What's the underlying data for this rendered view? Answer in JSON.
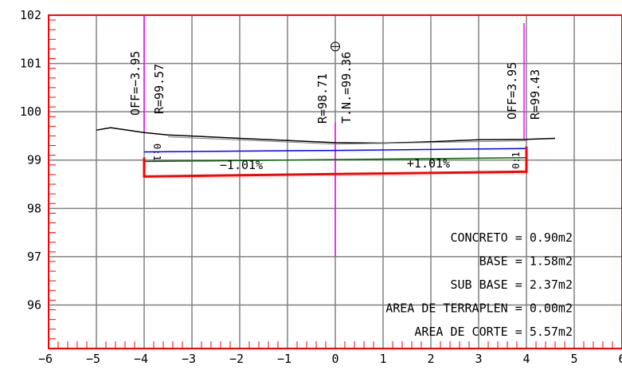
{
  "axes": {
    "x_ticks": [
      "-6",
      "-5",
      "-4",
      "-3",
      "-2",
      "-1",
      "0",
      "1",
      "2",
      "3",
      "4",
      "5",
      "6"
    ],
    "y_ticks": [
      "102",
      "101",
      "100",
      "99",
      "98",
      "97",
      "96"
    ],
    "xlim": [
      -6,
      6
    ],
    "ylim": [
      95.1,
      102
    ]
  },
  "colors": {
    "frame": "#ff0000",
    "grid": "#808080",
    "ground": "#000000",
    "offset_lines": "#ff00ff",
    "subgrade": "#0000ff",
    "pavement": "#ff0000",
    "centerline": "#ff00ff"
  },
  "labels": {
    "left_offset": "OFF=−3.95",
    "left_elevation": "R=99.57",
    "center_elevation": "R=98.71",
    "center_ground": "T.N.=99.36",
    "right_offset": "OFF=3.95",
    "right_elevation": "R=99.43",
    "left_slope": "−1.01%",
    "right_slope": "+1.01%",
    "left_talud": "0:1",
    "right_talud": "0:1"
  },
  "areas": [
    {
      "name": "CONCRETO",
      "value": "0.90m2"
    },
    {
      "name": "BASE",
      "value": "1.58m2"
    },
    {
      "name": "SUB BASE",
      "value": "2.37m2"
    },
    {
      "name": "AREA DE TERRAPLEN",
      "value": "0.00m2"
    },
    {
      "name": "AREA DE CORTE",
      "value": "5.57m2"
    }
  ],
  "chart_data": {
    "type": "line",
    "xlim": [
      -6,
      6
    ],
    "ylim": [
      95.1,
      102
    ],
    "grid": true,
    "series": [
      {
        "x": [
          -5,
          -4.7,
          -4,
          -3.5,
          -2,
          0,
          1,
          2,
          3,
          4,
          4.6
        ],
        "y": [
          99.62,
          99.67,
          99.57,
          99.52,
          99.45,
          99.36,
          99.35,
          99.38,
          99.42,
          99.43,
          99.45
        ]
      },
      {
        "x": [
          -4,
          0,
          4
        ],
        "y": [
          99.17,
          99.2,
          99.24
        ]
      },
      {
        "x": [
          -4,
          0,
          4
        ],
        "y": [
          98.97,
          99.01,
          99.05
        ]
      },
      {
        "x": [
          -4,
          0,
          4
        ],
        "y": [
          98.66,
          98.71,
          98.76
        ]
      }
    ]
  }
}
